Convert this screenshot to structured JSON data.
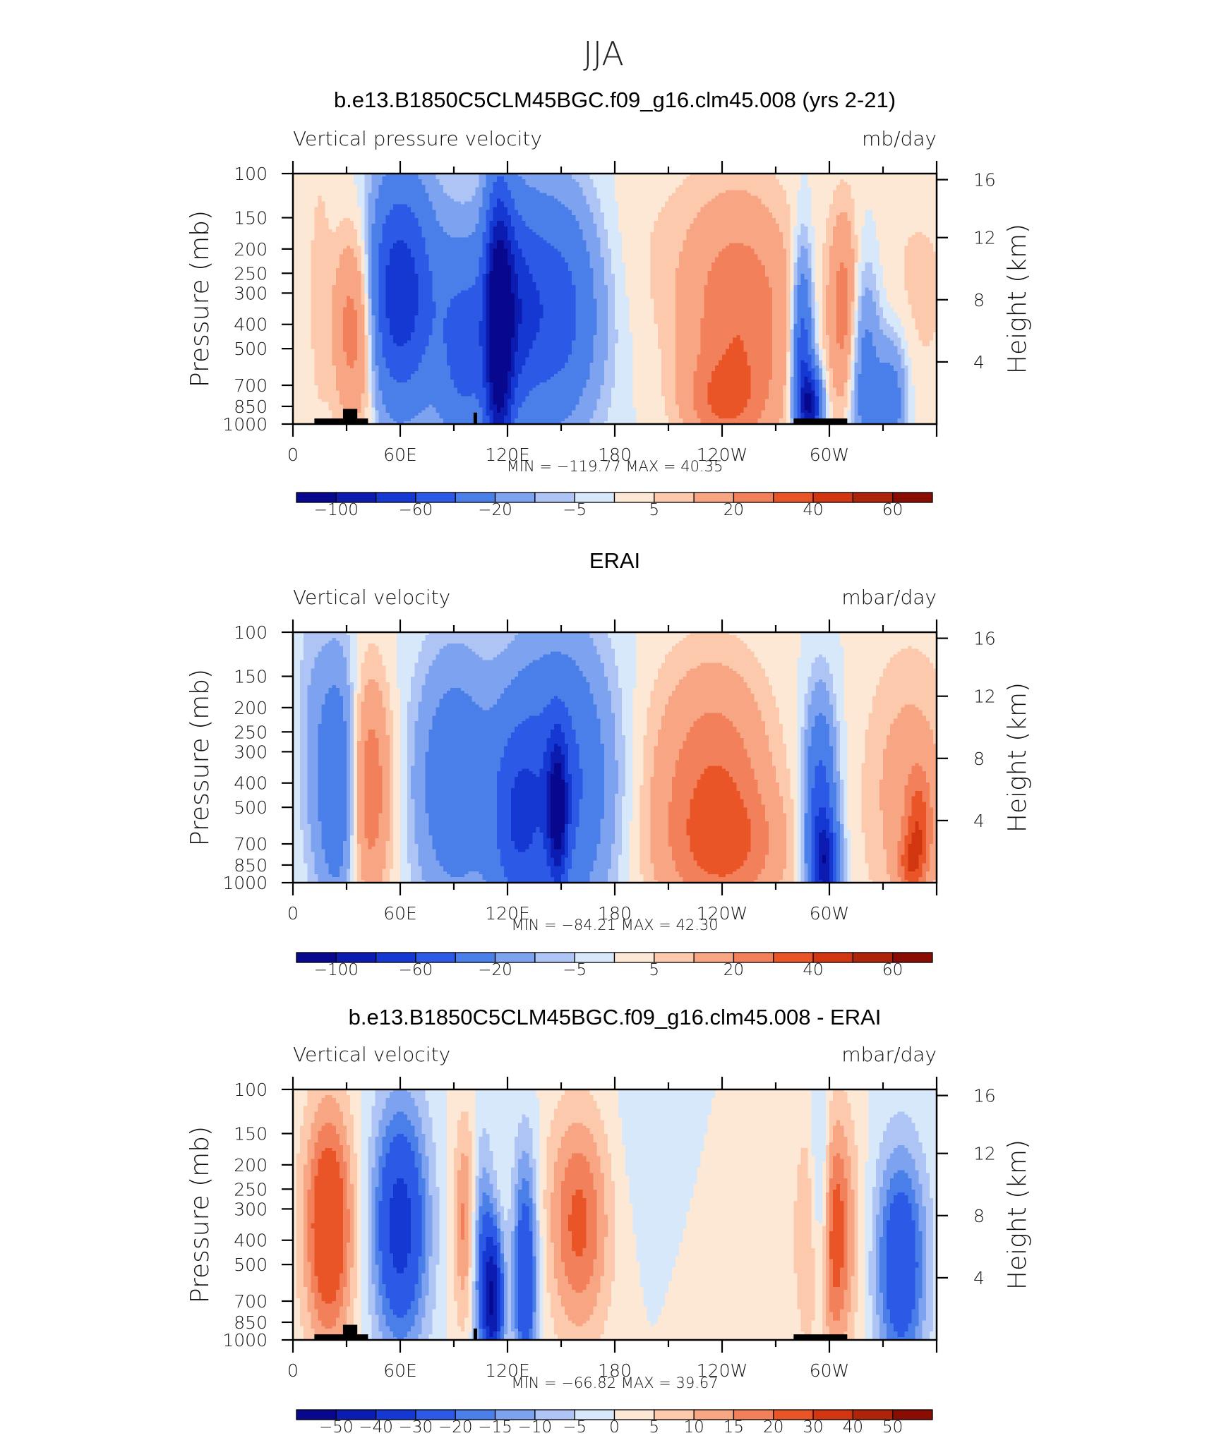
{
  "main_title": "JJA",
  "chart_data": [
    {
      "type": "heatmap",
      "title": "b.e13.B1850C5CLM45BGC.f09_g16.clm45.008 (yrs 2-21)",
      "left_label": "Vertical pressure velocity",
      "right_label": "mb/day",
      "xlabel": "",
      "ylabel": "Pressure (mb)",
      "y2label": "Height (km)",
      "x_ticks": [
        "0",
        "60E",
        "120E",
        "180",
        "120W",
        "60W"
      ],
      "x_tick_values": [
        0,
        60,
        120,
        180,
        240,
        300
      ],
      "xlim": [
        0,
        360
      ],
      "y_ticks": [
        "100",
        "150",
        "200",
        "250",
        "300",
        "400",
        "500",
        "700",
        "850",
        "1000"
      ],
      "y_tick_values": [
        100,
        150,
        200,
        250,
        300,
        400,
        500,
        700,
        850,
        1000
      ],
      "ylim": [
        1000,
        100
      ],
      "y_scale": "log",
      "y2_ticks": [
        "16",
        "12",
        "8",
        "4"
      ],
      "y2_tick_values": [
        16,
        12,
        8,
        4
      ],
      "stats": {
        "min_label": "MIN =",
        "min": "−119.77",
        "max_label": "MAX =",
        "max": "40.35"
      },
      "colorbar_labels": [
        "−100",
        "−60",
        "−20",
        "−5",
        "5",
        "20",
        "40",
        "60"
      ]
    },
    {
      "type": "heatmap",
      "title": "ERAI",
      "left_label": "Vertical velocity",
      "right_label": "mbar/day",
      "xlabel": "",
      "ylabel": "Pressure (mb)",
      "y2label": "Height (km)",
      "x_ticks": [
        "0",
        "60E",
        "120E",
        "180",
        "120W",
        "60W"
      ],
      "x_tick_values": [
        0,
        60,
        120,
        180,
        240,
        300
      ],
      "xlim": [
        0,
        360
      ],
      "y_ticks": [
        "100",
        "150",
        "200",
        "250",
        "300",
        "400",
        "500",
        "700",
        "850",
        "1000"
      ],
      "y_tick_values": [
        100,
        150,
        200,
        250,
        300,
        400,
        500,
        700,
        850,
        1000
      ],
      "ylim": [
        1000,
        100
      ],
      "y_scale": "log",
      "y2_ticks": [
        "16",
        "12",
        "8",
        "4"
      ],
      "y2_tick_values": [
        16,
        12,
        8,
        4
      ],
      "stats": {
        "min_label": "MIN =",
        "min": "−84.21",
        "max_label": "MAX =",
        "max": "42.30"
      },
      "colorbar_labels": [
        "−100",
        "−60",
        "−20",
        "−5",
        "5",
        "20",
        "40",
        "60"
      ]
    },
    {
      "type": "heatmap",
      "title": "b.e13.B1850C5CLM45BGC.f09_g16.clm45.008 - ERAI",
      "left_label": "Vertical velocity",
      "right_label": "mbar/day",
      "xlabel": "",
      "ylabel": "Pressure (mb)",
      "y2label": "Height (km)",
      "x_ticks": [
        "0",
        "60E",
        "120E",
        "180",
        "120W",
        "60W"
      ],
      "x_tick_values": [
        0,
        60,
        120,
        180,
        240,
        300
      ],
      "xlim": [
        0,
        360
      ],
      "y_ticks": [
        "100",
        "150",
        "200",
        "250",
        "300",
        "400",
        "500",
        "700",
        "850",
        "1000"
      ],
      "y_tick_values": [
        100,
        150,
        200,
        250,
        300,
        400,
        500,
        700,
        850,
        1000
      ],
      "ylim": [
        1000,
        100
      ],
      "y_scale": "log",
      "y2_ticks": [
        "16",
        "12",
        "8",
        "4"
      ],
      "y2_tick_values": [
        16,
        12,
        8,
        4
      ],
      "stats": {
        "min_label": "MIN =",
        "min": "−66.82",
        "max_label": "MAX =",
        "max": "39.67"
      },
      "colorbar_labels": [
        "−50",
        "−40",
        "−30",
        "−20",
        "−15",
        "−10",
        "−5",
        "0",
        "5",
        "10",
        "15",
        "20",
        "30",
        "40",
        "50"
      ]
    }
  ],
  "colors": {
    "palette": [
      "#08088f",
      "#0c1cb0",
      "#1638d2",
      "#2c5ae6",
      "#4a7ee8",
      "#7da2ef",
      "#aec4f4",
      "#d8e8fb",
      "#fde8d6",
      "#fcc9ac",
      "#f7a582",
      "#f2805a",
      "#ea5527",
      "#d23611",
      "#ad2409",
      "#8a0d04"
    ]
  }
}
